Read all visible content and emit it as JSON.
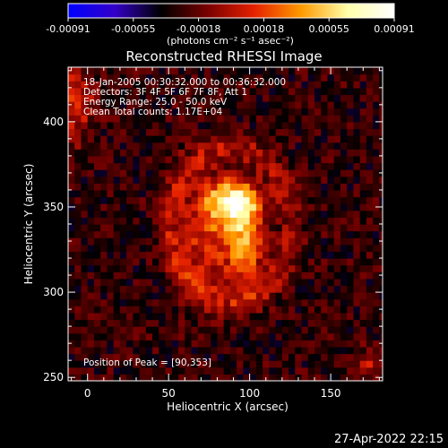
{
  "colorbar": {
    "ticks": [
      "-0.00091",
      "-0.00055",
      "-0.00018",
      "0.00018",
      "0.00055",
      "0.00091"
    ],
    "units_label": "(photons cm⁻² s⁻¹ asec⁻²)",
    "stops": [
      "#0000ff",
      "#3300c8",
      "#000000",
      "#7a0000",
      "#e62200",
      "#ff9a00",
      "#ffffaa",
      "#ffffff"
    ]
  },
  "chart_data": {
    "type": "heatmap",
    "title": "Reconstructed RHESSI Image",
    "xlabel": "Heliocentric X (arcsec)",
    "ylabel": "Heliocentric Y (arcsec)",
    "xlim": [
      -12,
      182
    ],
    "ylim": [
      248,
      432
    ],
    "xticks": [
      0,
      50,
      100,
      150
    ],
    "yticks": [
      250,
      300,
      350,
      400
    ],
    "info_lines": [
      "18-Jan-2005 00:30:32.000 to 00:36:32.000",
      "Detectors: 3F 4F 5F 6F 7F 8F, Att 1",
      "Energy Range: 25.0 - 50.0 keV",
      "Clean     Total counts: 1.17E+04"
    ],
    "peak_label": "Position of Peak = [90,353]",
    "peak": [
      90,
      353
    ],
    "sources": [
      {
        "x": 90,
        "y": 353,
        "sx": 11,
        "sy": 9,
        "amp": 1.0
      },
      {
        "x": 97,
        "y": 330,
        "sx": 8,
        "sy": 18,
        "amp": 0.72
      },
      {
        "x": 73,
        "y": 335,
        "sx": 12,
        "sy": 22,
        "amp": 0.45
      },
      {
        "x": -8,
        "y": 412,
        "sx": 8,
        "sy": 16,
        "amp": 0.45
      },
      {
        "x": 172,
        "y": 258,
        "sx": 6,
        "sy": 6,
        "amp": 0.35
      }
    ]
  },
  "timestamp": "27-Apr-2022 22:15"
}
